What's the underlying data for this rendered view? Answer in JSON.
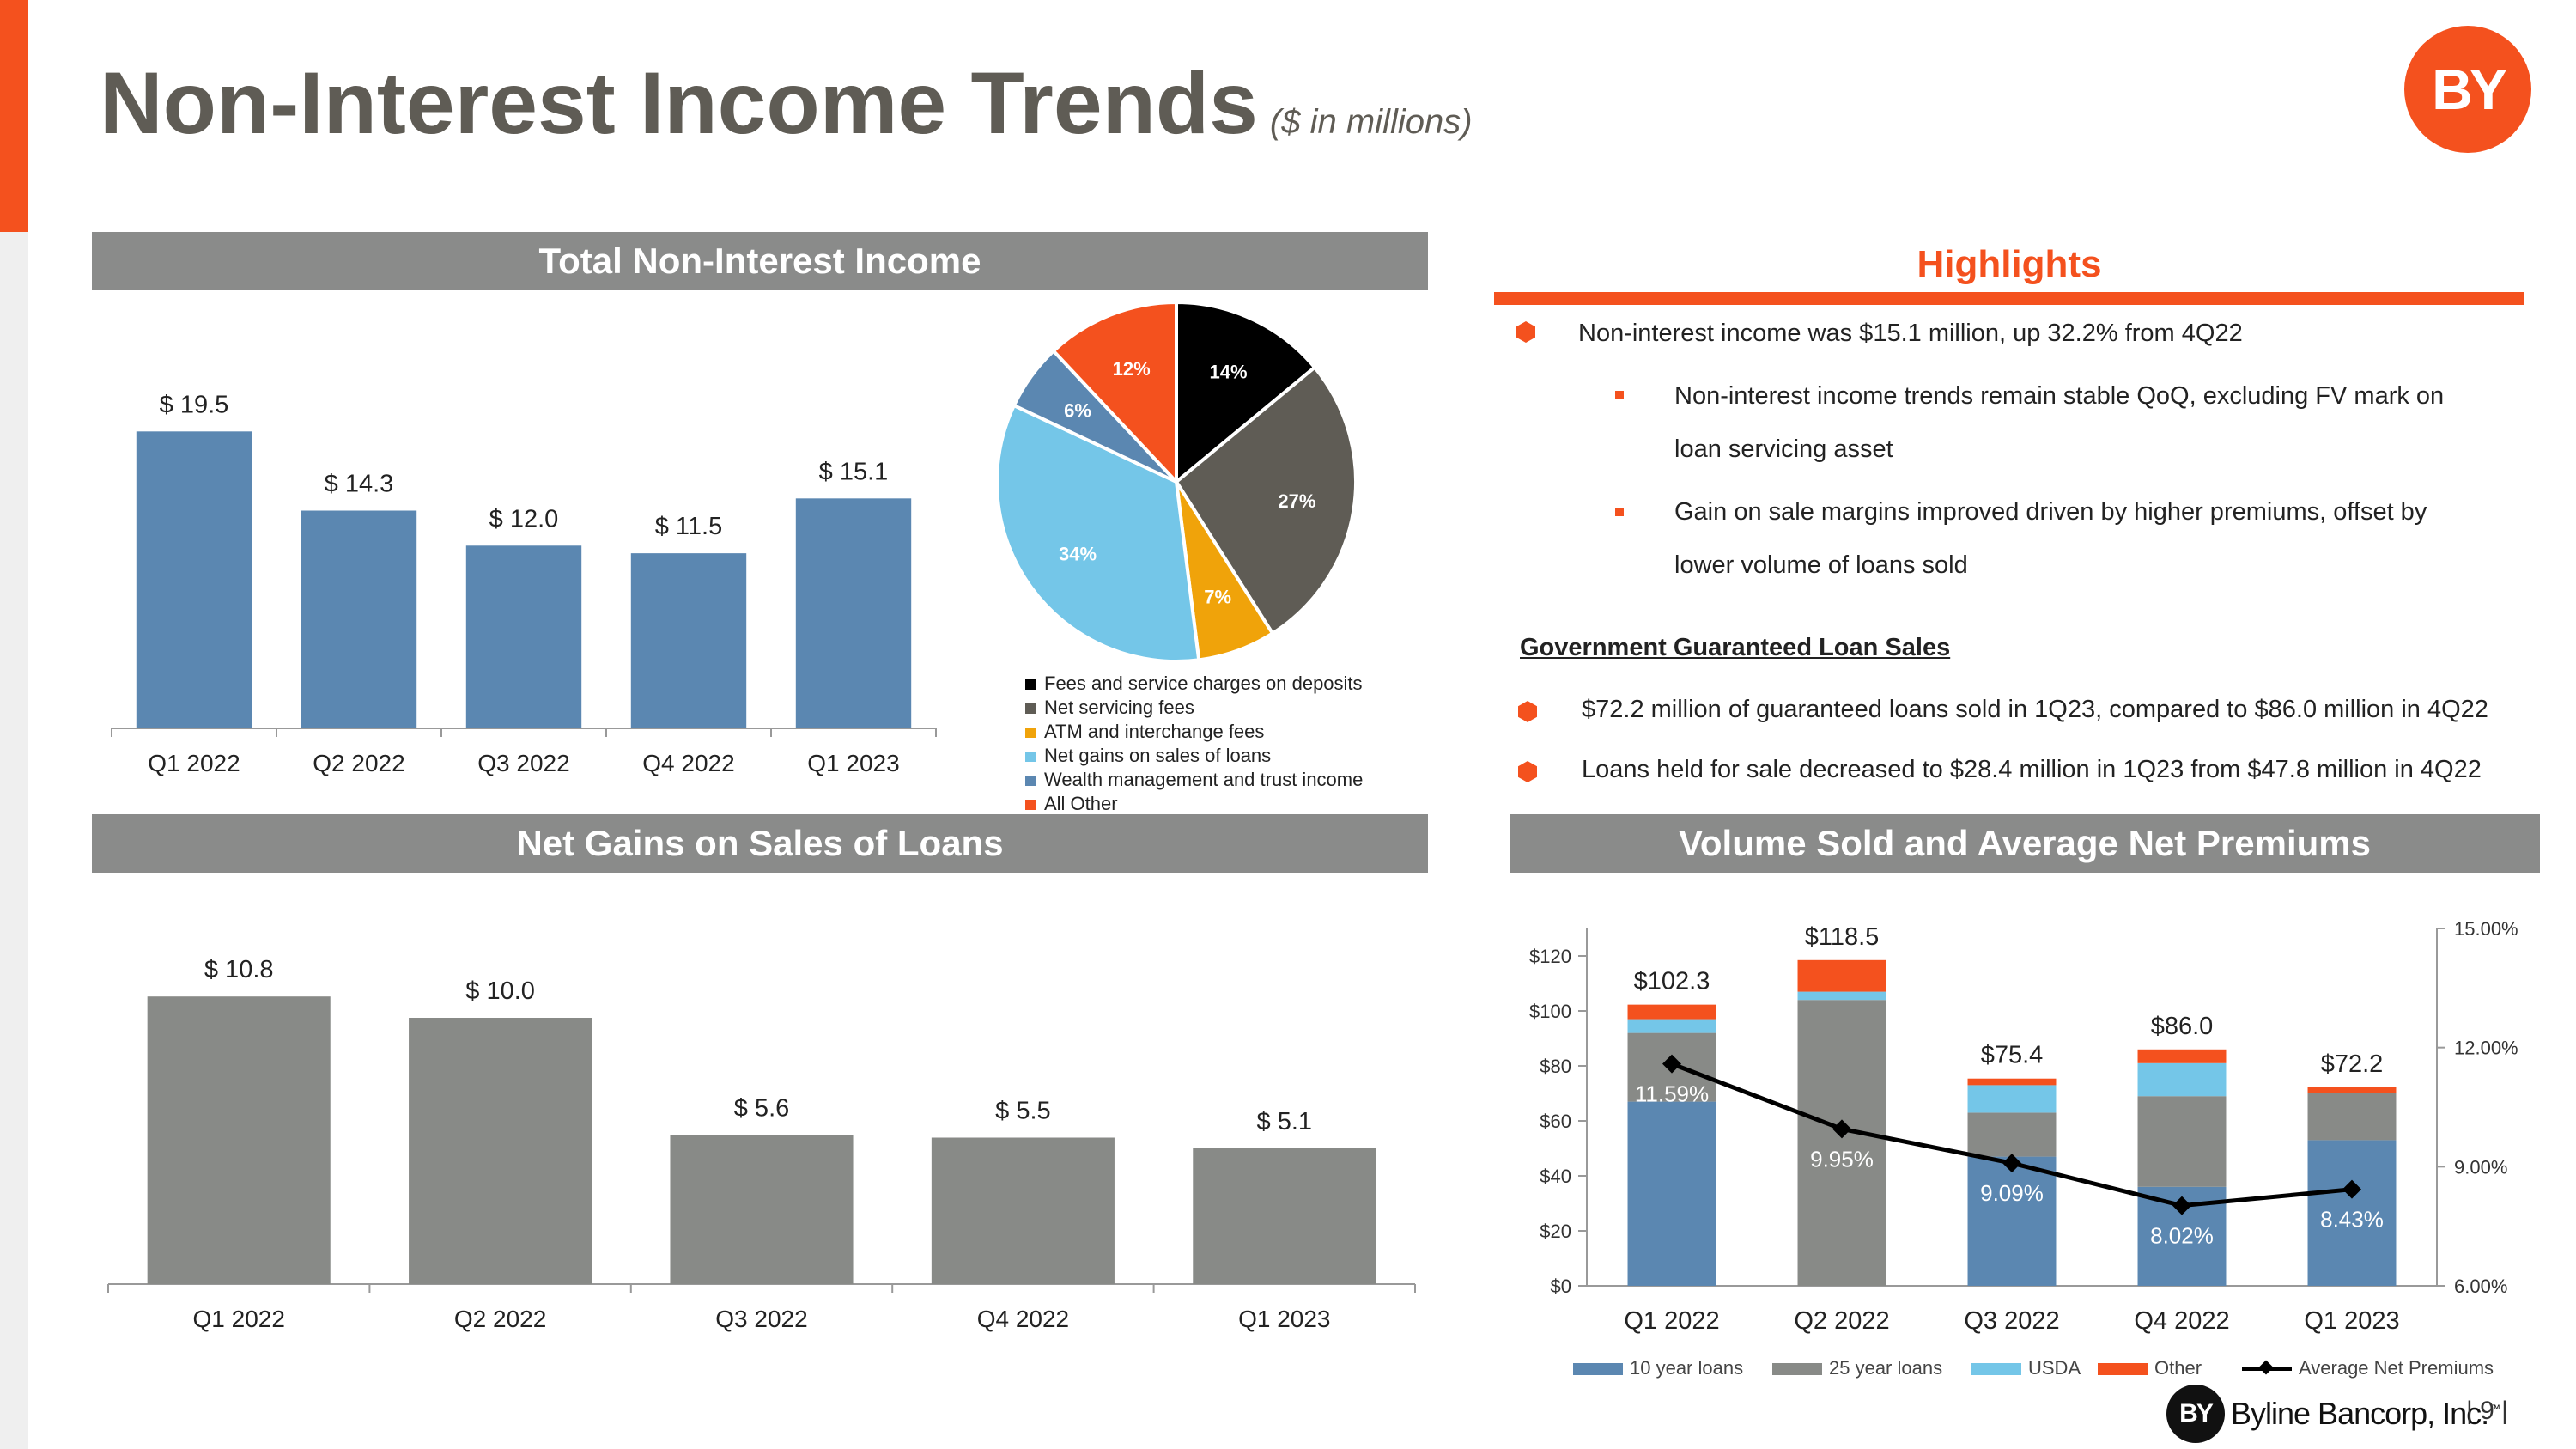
{
  "header": {
    "title": "Non-Interest Income Trends",
    "subtitle": "($ in millions)",
    "logo_text": "BY"
  },
  "panels": {
    "total": "Total Non-Interest Income",
    "highlights": "Highlights",
    "net_gains": "Net Gains on Sales of Loans",
    "volume": "Volume Sold and Average Net Premiums"
  },
  "highlights": {
    "bullets": [
      {
        "text": "Non-interest income was $15.1 million, up 32.2% from 4Q22",
        "sub": [
          {
            "line1": "Non-interest income trends remain stable QoQ, excluding FV mark on",
            "line2": "loan servicing asset"
          },
          {
            "line1": "Gain on sale margins improved driven by higher premiums, offset by",
            "line2": "lower volume of loans sold"
          }
        ]
      }
    ],
    "gov_title": "Government Guaranteed Loan Sales",
    "gov_bullets": [
      "$72.2 million of guaranteed loans sold in 1Q23, compared to $86.0 million in 4Q22",
      "Loans held for sale decreased to $28.4 million in 1Q23 from $47.8 million in 4Q22"
    ]
  },
  "footer": {
    "logo_text": "BY",
    "company": "Byline Bancorp, Inc.",
    "tm": "™",
    "page": "9"
  },
  "colors": {
    "accent": "#f4511e",
    "bar_blue": "#5b87b1",
    "bar_gray": "#888a87"
  },
  "chart_data": [
    {
      "id": "total_non_interest_income",
      "type": "bar",
      "categories": [
        "Q1 2022",
        "Q2 2022",
        "Q3 2022",
        "Q4 2022",
        "Q1 2023"
      ],
      "values": [
        19.5,
        14.3,
        12.0,
        11.5,
        15.1
      ],
      "labels": [
        "$ 19.5",
        "$ 14.3",
        "$ 12.0",
        "$ 11.5",
        "$ 15.1"
      ],
      "ylim": [
        0,
        22
      ],
      "color": "#5b87b1"
    },
    {
      "id": "income_mix",
      "type": "pie",
      "slices": [
        {
          "label": "Fees and service charges on deposits",
          "pct": 14,
          "text": "14%",
          "color": "#000000"
        },
        {
          "label": "Net servicing fees",
          "pct": 27,
          "text": "27%",
          "color": "#5f5c55"
        },
        {
          "label": "ATM and interchange fees",
          "pct": 7,
          "text": "7%",
          "color": "#f0a30a"
        },
        {
          "label": "Net gains on sales of loans",
          "pct": 34,
          "text": "34%",
          "color": "#74c6e8"
        },
        {
          "label": "Wealth management and trust income",
          "pct": 6,
          "text": "6%",
          "color": "#5b87b1"
        },
        {
          "label": "All Other",
          "pct": 12,
          "text": "12%",
          "color": "#f4511e"
        }
      ]
    },
    {
      "id": "net_gains_on_sales",
      "type": "bar",
      "categories": [
        "Q1 2022",
        "Q2 2022",
        "Q3 2022",
        "Q4 2022",
        "Q1 2023"
      ],
      "values": [
        10.8,
        10.0,
        5.6,
        5.5,
        5.1
      ],
      "labels": [
        "$ 10.8",
        "$ 10.0",
        "$ 5.6",
        "$ 5.5",
        "$ 5.1"
      ],
      "ylim": [
        0,
        12
      ],
      "color": "#888a87"
    },
    {
      "id": "volume_and_premiums",
      "type": "bar",
      "stacked": true,
      "categories": [
        "Q1 2022",
        "Q2 2022",
        "Q3 2022",
        "Q4 2022",
        "Q1 2023"
      ],
      "series": [
        {
          "name": "10 year loans",
          "values": [
            67,
            0,
            47,
            36,
            53
          ],
          "color": "#5b87b1"
        },
        {
          "name": "25 year loans",
          "values": [
            25,
            104,
            16,
            33,
            17
          ],
          "color": "#888a87"
        },
        {
          "name": "USDA",
          "values": [
            5,
            3,
            10,
            12,
            0
          ],
          "color": "#74c6e8"
        },
        {
          "name": "Other",
          "values": [
            5.3,
            11.5,
            2.4,
            5,
            2.2
          ],
          "color": "#f4511e"
        }
      ],
      "totals": [
        "$102.3",
        "$118.5",
        "$75.4",
        "$86.0",
        "$72.2"
      ],
      "line": {
        "name": "Average Net Premiums",
        "values": [
          11.59,
          9.95,
          9.09,
          8.02,
          8.43
        ],
        "labels": [
          "11.59%",
          "9.95%",
          "9.09%",
          "8.02%",
          "8.43%"
        ],
        "color": "#000000"
      },
      "yticks": [
        "$0",
        "$20",
        "$40",
        "$60",
        "$80",
        "$100",
        "$120"
      ],
      "y2ticks": [
        "6.00%",
        "9.00%",
        "12.00%",
        "15.00%"
      ],
      "ylim": [
        0,
        130
      ],
      "y2lim": [
        6,
        15
      ]
    }
  ]
}
